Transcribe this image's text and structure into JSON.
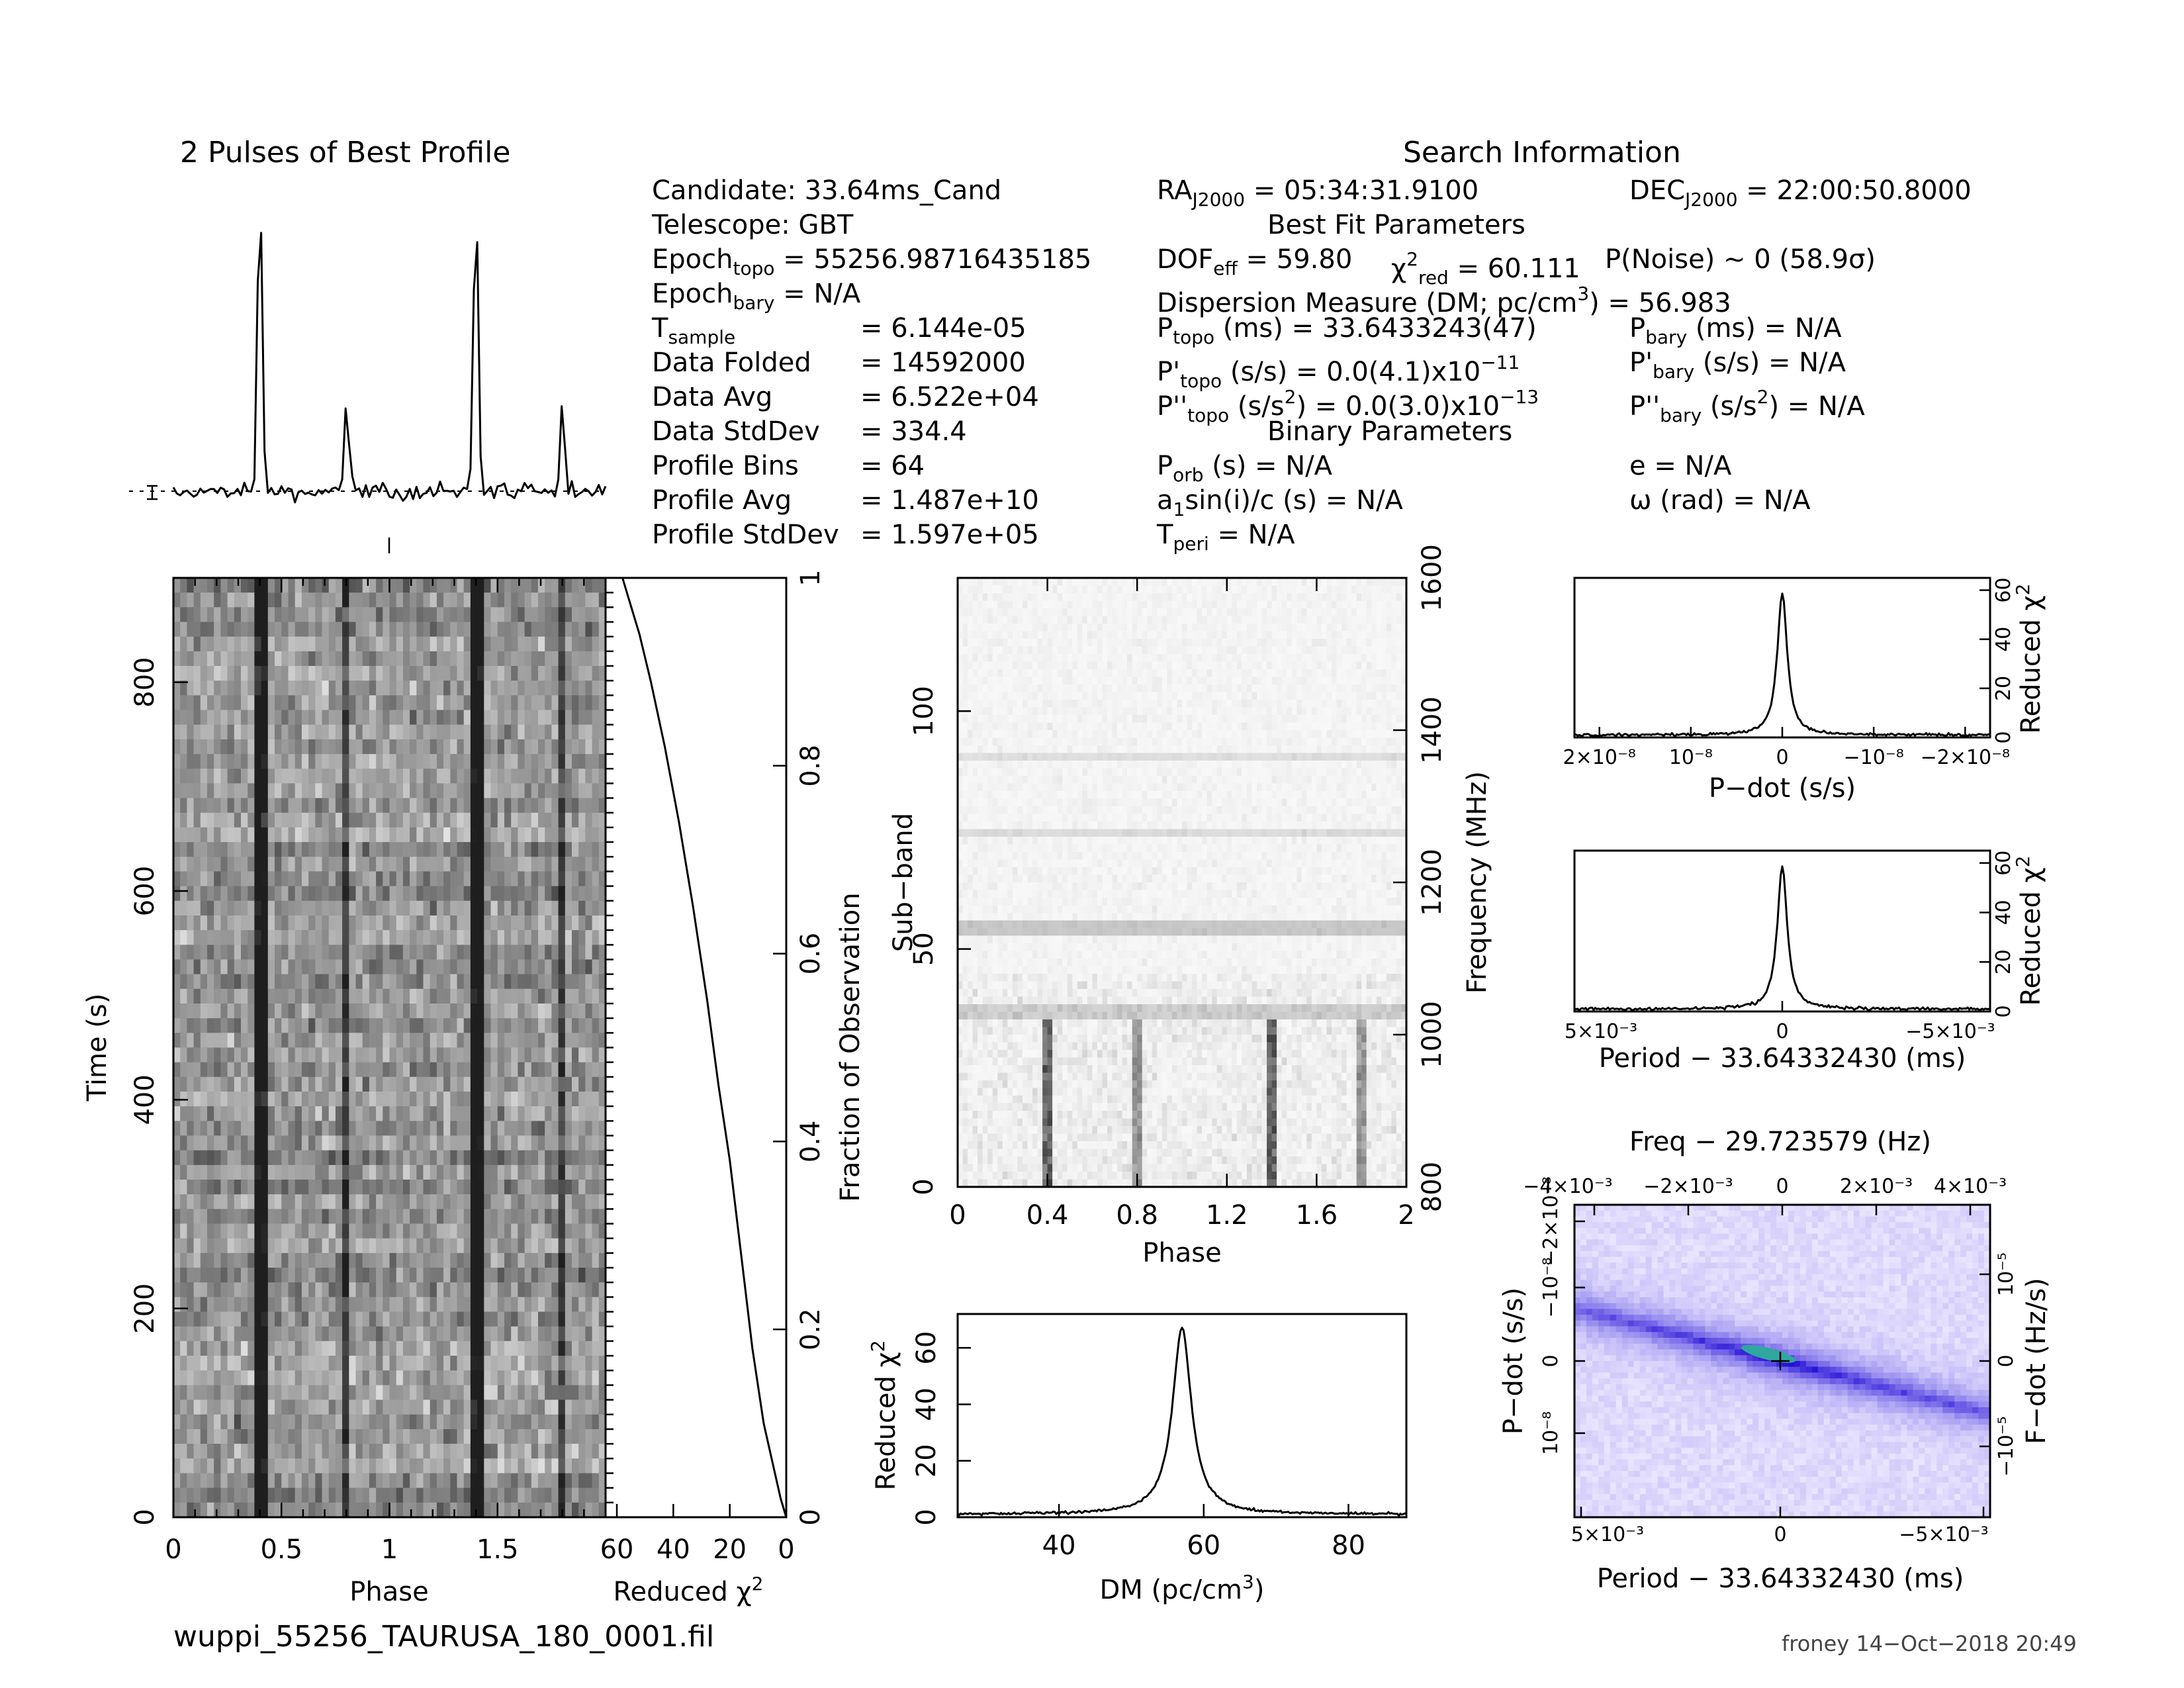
{
  "title_profile": "2 Pulses of Best Profile",
  "search": {
    "header": "Search Information",
    "candidate": "Candidate:  33.64ms_Cand",
    "telescope": "Telescope:  GBT",
    "epoch_topo_label": "Epoch",
    "epoch_topo_sub": "topo",
    "epoch_topo_value": " = 55256.98716435185",
    "epoch_bary_label": "Epoch",
    "epoch_bary_sub": "bary",
    "epoch_bary_value": " = N/A",
    "tsample_label": "T",
    "tsample_sub": "sample",
    "tsample_value": "=   6.144e-05",
    "data_folded_label": "Data Folded",
    "data_folded_value": "=   14592000",
    "data_avg_label": "Data Avg",
    "data_avg_value": "=   6.522e+04",
    "data_stddev_label": "Data StdDev",
    "data_stddev_value": "=   334.4",
    "profile_bins_label": "Profile Bins",
    "profile_bins_value": "=   64",
    "profile_avg_label": "Profile Avg",
    "profile_avg_value": "=   1.487e+10",
    "profile_stddev_label": "Profile StdDev",
    "profile_stddev_value": "=   1.597e+05",
    "ra_label": "RA",
    "ra_sub": "J2000",
    "ra_value": " = 05:34:31.9100",
    "dec_label": "DEC",
    "dec_sub": "J2000",
    "dec_value": " = 22:00:50.8000"
  },
  "best_fit": {
    "header": "Best Fit Parameters",
    "dof_label": "DOF",
    "dof_sub": "eff",
    "dof_value": " = 59.80",
    "chi_label": "χ",
    "chi_sup": "2",
    "chi_sub": "red",
    "chi_value": " = 60.111",
    "pnoise": "P(Noise) ~ 0    (58.9σ)",
    "dm_line_a": "Dispersion Measure (DM; pc/cm",
    "dm_line_sup": "3",
    "dm_line_b": ") = 56.983",
    "ptopo_label": "P",
    "ptopo_sub": "topo",
    "ptopo_value": " (ms)  =   33.6433243(47)",
    "pdtopo_label": "P'",
    "pdtopo_sub": "topo",
    "pdtopo_value": " (s/s)  = 0.0(4.1)x10",
    "pdtopo_exp": "−11",
    "pddtopo_label": "P''",
    "pddtopo_sub": "topo",
    "pddtopo_value": " (s/s",
    "pddtopo_sup": "2",
    "pddtopo_value2": ") = 0.0(3.0)x10",
    "pddtopo_exp": "−13",
    "pbary_label": "P",
    "pbary_sub": "bary",
    "pbary_value": " (ms) = N/A",
    "pdbary_label": "P'",
    "pdbary_sub": "bary",
    "pdbary_value": " (s/s) = N/A",
    "pddbary_label": "P''",
    "pddbary_sub": "bary",
    "pddbary_value": " (s/s",
    "pddbary_sup": "2",
    "pddbary_value2": ") = N/A"
  },
  "binary": {
    "header": "Binary Parameters",
    "porb_label": "P",
    "porb_sub": "orb",
    "porb_value": " (s) = N/A",
    "a1_label": "a",
    "a1_sub": "1",
    "a1_value": "sin(i)/c (s) = N/A",
    "tperi_label": "T",
    "tperi_sub": "peri",
    "tperi_value": " = N/A",
    "e_line": "e = N/A",
    "omega_line": "ω (rad) = N/A"
  },
  "footer": {
    "filename": "wuppi_55256_TAURUSA_180_0001.fil",
    "stamp": "froney 14−Oct−2018 20:49"
  },
  "chart_data": [
    {
      "id": "profile",
      "type": "line",
      "title": "2 Pulses of Best Profile",
      "x": "phase 0-2",
      "peaks": [
        {
          "phase": 0.4,
          "height": 1.0
        },
        {
          "phase": 0.8,
          "height": 0.3
        },
        {
          "phase": 1.4,
          "height": 1.0
        },
        {
          "phase": 1.8,
          "height": 0.3
        }
      ]
    },
    {
      "id": "time_phase",
      "type": "heatmap",
      "xlabel": "Phase",
      "ylabel": "Time (s)",
      "xlim": [
        0,
        2
      ],
      "ylim": [
        0,
        900
      ],
      "xticks": [
        "0",
        "0.5",
        "1",
        "1.5"
      ],
      "yticks": [
        "0",
        "200",
        "400",
        "600",
        "800"
      ],
      "pulse_phases": [
        0.4,
        0.8,
        1.4,
        1.8
      ]
    },
    {
      "id": "chi_time",
      "type": "line",
      "xlabel": "Reduced χ",
      "xlabel_sup": "2",
      "ylabel": "Fraction of Observation",
      "xlim": [
        60,
        0
      ],
      "ylim": [
        0,
        1
      ],
      "xticks": [
        "60",
        "40",
        "20",
        "0"
      ],
      "yticks": [
        "0",
        "0.2",
        "0.4",
        "0.6",
        "0.8",
        "1"
      ],
      "points": [
        [
          0,
          0
        ],
        [
          2,
          0.02
        ],
        [
          5,
          0.06
        ],
        [
          8,
          0.1
        ],
        [
          12,
          0.18
        ],
        [
          16,
          0.28
        ],
        [
          20,
          0.38
        ],
        [
          24,
          0.46
        ],
        [
          28,
          0.55
        ],
        [
          33,
          0.65
        ],
        [
          38,
          0.74
        ],
        [
          43,
          0.82
        ],
        [
          48,
          0.89
        ],
        [
          52,
          0.94
        ],
        [
          56,
          0.98
        ],
        [
          58,
          1.0
        ]
      ]
    },
    {
      "id": "subband_phase",
      "type": "heatmap",
      "xlabel": "Phase",
      "ylabel": "Sub−band",
      "ylabel_right": "Frequency (MHz)",
      "xlim": [
        0,
        2
      ],
      "ylim": [
        0,
        128
      ],
      "freq_lim": [
        800,
        1600
      ],
      "xticks": [
        "0",
        "0.4",
        "0.8",
        "1.2",
        "1.6",
        "2"
      ],
      "yticks": [
        "0",
        "50",
        "100"
      ],
      "freq_ticks": [
        "800",
        "1000",
        "1200",
        "1400",
        "1600"
      ],
      "pulse_phases": [
        0.4,
        0.8,
        1.4,
        1.8
      ]
    },
    {
      "id": "dm_chi",
      "type": "line",
      "xlabel": "DM (pc/cm",
      "xlabel_sup": "3",
      "xlabel_end": ")",
      "ylabel": "Reduced χ",
      "ylabel_sup": "2",
      "xlim": [
        26,
        88
      ],
      "ylim": [
        0,
        72
      ],
      "xticks": [
        "40",
        "60",
        "80"
      ],
      "yticks": [
        "0",
        "20",
        "40",
        "60"
      ],
      "peak_x": 57.0,
      "peak_y": 67,
      "baseline": 1
    },
    {
      "id": "pdot_chi",
      "type": "line",
      "xlabel": "P−dot (s/s)",
      "ylabel": "Reduced χ",
      "ylabel_sup": "2",
      "xlim": [
        2.3e-08,
        -2.3e-08
      ],
      "ylim": [
        0,
        65
      ],
      "xticks": [
        "2×10⁻⁸",
        "10⁻⁸",
        "0",
        "−10⁻⁸",
        "−2×10⁻⁸"
      ],
      "yticks": [
        "0",
        "20",
        "40",
        "60"
      ],
      "peak_y": 59,
      "baseline": 1
    },
    {
      "id": "period_chi",
      "type": "line",
      "xlabel": "Period − 33.64332430 (ms)",
      "ylabel": "Reduced χ",
      "ylabel_sup": "2",
      "xlim": [
        0.005,
        -0.005
      ],
      "ylim": [
        0,
        65
      ],
      "xticks": [
        "5×10⁻³",
        "0",
        "−5×10⁻³"
      ],
      "yticks": [
        "0",
        "20",
        "40",
        "60"
      ],
      "peak_y": 59,
      "baseline": 1
    },
    {
      "id": "ppdot_map",
      "type": "heatmap",
      "title": "Freq − 29.723579 (Hz)",
      "xlabel": "Period − 33.64332430 (ms)",
      "ylabel": "P−dot (s/s)",
      "ylabel_right": "F−dot (Hz/s)",
      "xticks_bottom": [
        "5×10⁻³",
        "0",
        "−5×10⁻³"
      ],
      "xticks_top": [
        "−4×10⁻³",
        "−2×10⁻³",
        "0",
        "2×10⁻³",
        "4×10⁻³"
      ],
      "yticks_left": [
        "10⁻⁸",
        "0",
        "−10⁻⁸",
        "−2×10⁻⁸"
      ],
      "yticks_right": [
        "−10⁻⁵",
        "0",
        "10⁻⁵"
      ]
    }
  ]
}
